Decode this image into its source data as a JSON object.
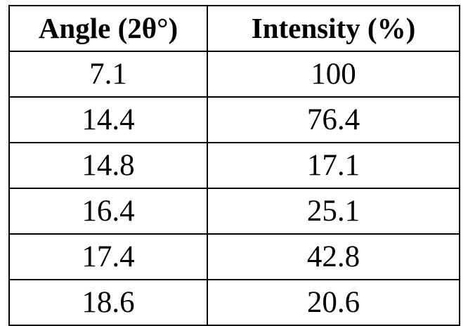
{
  "table": {
    "headers": [
      "Angle (2θ°)",
      "Intensity (%)"
    ],
    "rows": [
      [
        "7.1",
        "100"
      ],
      [
        "14.4",
        "76.4"
      ],
      [
        "14.8",
        "17.1"
      ],
      [
        "16.4",
        "25.1"
      ],
      [
        "17.4",
        "42.8"
      ],
      [
        "18.6",
        "20.6"
      ]
    ]
  }
}
